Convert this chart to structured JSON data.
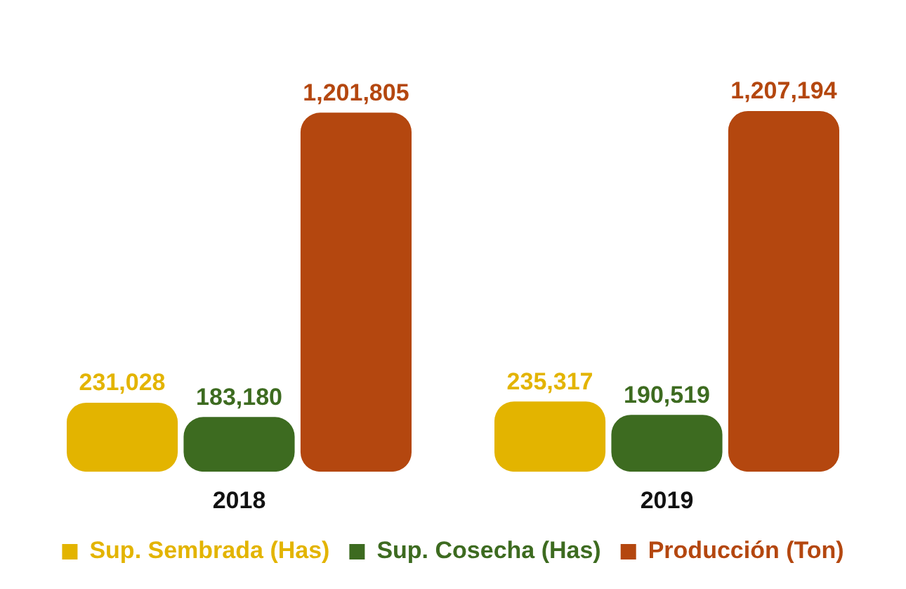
{
  "chart_data": {
    "type": "bar",
    "categories": [
      "2018",
      "2019"
    ],
    "series": [
      {
        "name": "Sup. Sembrada (Has)",
        "color": "#e3b400",
        "values": [
          231028,
          235317
        ],
        "value_labels": [
          "231,028",
          "235,317"
        ]
      },
      {
        "name": "Sup. Cosecha (Has)",
        "color": "#3d6b20",
        "values": [
          183180,
          190519
        ],
        "value_labels": [
          "183,180",
          "190,519"
        ]
      },
      {
        "name": "Producción (Ton)",
        "color": "#b4470f",
        "values": [
          1201805,
          1207194
        ],
        "value_labels": [
          "1,201,805",
          "1,207,194"
        ]
      }
    ],
    "legend": "bottom",
    "grid": false
  }
}
